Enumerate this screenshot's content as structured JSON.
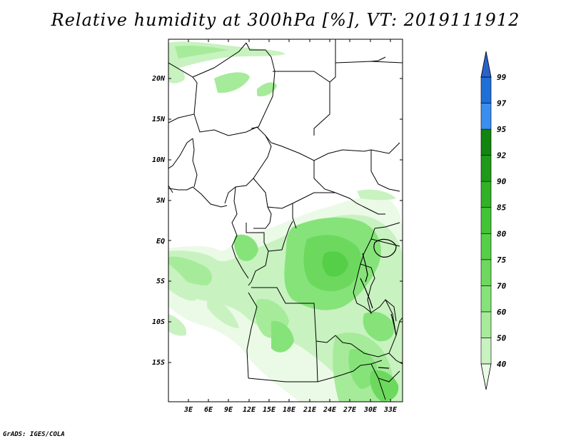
{
  "title": "Relative humidity at 300hPa [%], VT: 2019111912",
  "credit": "GrADS: IGES/COLA",
  "map": {
    "lat_labels": [
      "20N",
      "15N",
      "10N",
      "5N",
      "EQ",
      "5S",
      "10S",
      "15S"
    ],
    "lon_labels": [
      "3E",
      "6E",
      "9E",
      "12E",
      "15E",
      "18E",
      "21E",
      "24E",
      "27E",
      "30E",
      "33E"
    ]
  },
  "colorbar": {
    "labels": [
      "40",
      "50",
      "60",
      "70",
      "75",
      "80",
      "85",
      "90",
      "92",
      "95",
      "97",
      "99"
    ],
    "colors": [
      "#eafae6",
      "#c8f2c0",
      "#a6eb9a",
      "#86e37a",
      "#6cd95e",
      "#56cf48",
      "#43c436",
      "#31b226",
      "#1e9918",
      "#128410",
      "#3a8ef0",
      "#1f6fd8",
      "#2a62c8"
    ]
  },
  "colors": {
    "land_fill": "#ffffff",
    "border": "#000000"
  }
}
